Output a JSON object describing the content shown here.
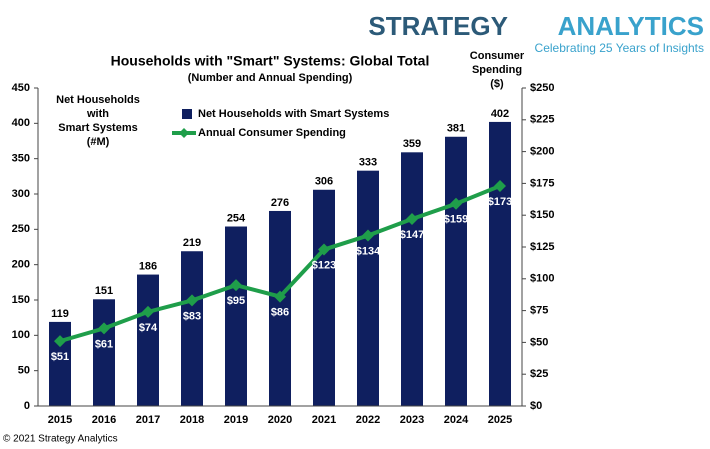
{
  "logo": {
    "first": "STRATEGY",
    "second": "ANALYTICS",
    "tagline": "Celebrating 25 Years of Insights"
  },
  "footer": "© 2021 Strategy Analytics",
  "chart_data": {
    "type": "bar",
    "title": "Households with \"Smart\" Systems: Global Total",
    "subtitle": "(Number and Annual Spending)",
    "y_label": [
      "Net Households",
      "with",
      "Smart Systems",
      "(#M)"
    ],
    "y2_label": [
      "Consumer",
      "Spending",
      "($)"
    ],
    "categories": [
      "2015",
      "2016",
      "2017",
      "2018",
      "2019",
      "2020",
      "2021",
      "2022",
      "2023",
      "2024",
      "2025"
    ],
    "series": [
      {
        "name": "Net Households with Smart Systems",
        "type": "bar",
        "color": "#0f1f5f",
        "values": [
          119,
          151,
          186,
          219,
          254,
          276,
          306,
          333,
          359,
          381,
          402
        ]
      },
      {
        "name": "Annual Consumer Spending",
        "type": "line",
        "axis": "y2",
        "color": "#1f9e4a",
        "values": [
          51,
          61,
          74,
          83,
          95,
          86,
          123,
          134,
          147,
          159,
          173
        ],
        "value_labels": [
          "$51",
          "$61",
          "$74",
          "$83",
          "$95",
          "$86",
          "$123",
          "$134",
          "$147",
          "$159",
          "$173"
        ]
      }
    ],
    "ylim": [
      0,
      450
    ],
    "yticks": [
      0,
      50,
      100,
      150,
      200,
      250,
      300,
      350,
      400,
      450
    ],
    "y2lim": [
      0,
      250
    ],
    "y2ticks": [
      {
        "value": 0,
        "label": "$0"
      },
      {
        "value": 25,
        "label": "$25"
      },
      {
        "value": 50,
        "label": "$50"
      },
      {
        "value": 75,
        "label": "$75"
      },
      {
        "value": 100,
        "label": "$100"
      },
      {
        "value": 125,
        "label": "$125"
      },
      {
        "value": 150,
        "label": "$150"
      },
      {
        "value": 175,
        "label": "$175"
      },
      {
        "value": 200,
        "label": "$200"
      },
      {
        "value": 225,
        "label": "$225"
      },
      {
        "value": 250,
        "label": "$250"
      }
    ],
    "legend": "upper left"
  }
}
